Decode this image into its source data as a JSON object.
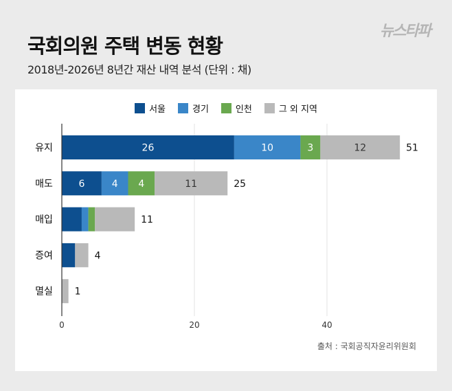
{
  "header": {
    "title": "국회의원 주택 변동 현황",
    "subtitle": "2018년-2026년 8년간 재산 내역 분석 (단위 : 채)",
    "logo": "뉴스타파"
  },
  "source": "출처 : 국회공직자윤리위원회",
  "chart_data": {
    "type": "bar",
    "orientation": "horizontal",
    "stacked": true,
    "categories": [
      "유지",
      "매도",
      "매입",
      "증여",
      "멸실"
    ],
    "series": [
      {
        "name": "서울",
        "color": "#0d4f8f",
        "values": [
          26,
          6,
          3,
          2,
          0
        ]
      },
      {
        "name": "경기",
        "color": "#3a86c8",
        "values": [
          10,
          4,
          1,
          0,
          0
        ]
      },
      {
        "name": "인천",
        "color": "#6aa84f",
        "values": [
          3,
          4,
          1,
          0,
          0
        ]
      },
      {
        "name": "그 외 지역",
        "color": "#b9b9b9",
        "values": [
          12,
          11,
          6,
          2,
          1
        ]
      }
    ],
    "totals": [
      51,
      25,
      11,
      4,
      1
    ],
    "segment_labels_shown": [
      [
        true,
        true,
        true,
        true
      ],
      [
        true,
        true,
        true,
        true
      ],
      [
        false,
        false,
        false,
        false
      ],
      [
        false,
        false,
        false,
        false
      ],
      [
        false,
        false,
        false,
        false
      ]
    ],
    "xticks": [
      0,
      20,
      40
    ],
    "xlim": [
      0,
      53
    ],
    "grid": true,
    "legend": "top-center"
  }
}
